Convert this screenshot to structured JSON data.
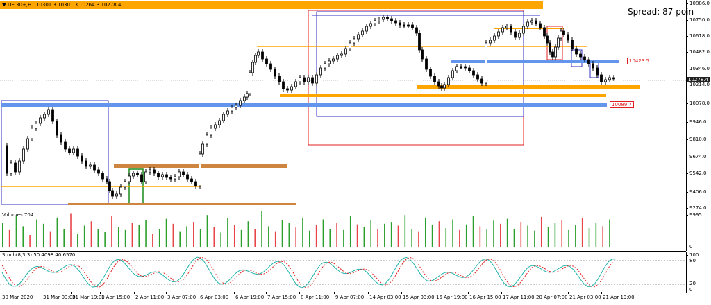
{
  "chart_header": {
    "symbol_info": "DE.30+,H1  10301.3 10301.3 10264.3 10278.4",
    "spread_text": "Spread: 87 poin"
  },
  "price_axis": [
    "10886.0",
    "10750.0",
    "10618.0",
    "10482.0",
    "10346.0",
    "10214.0",
    "10078.0",
    "9946.0",
    "9810.0",
    "9674.0",
    "9542.0",
    "9406.0",
    "9274.0"
  ],
  "price_tags": {
    "upper": "10423.5",
    "lower": "10089.7",
    "current": "10278.4"
  },
  "volume_pane": {
    "label": "Volumes 704",
    "axis_top": "9995",
    "axis_bottom": "0"
  },
  "stoch_pane": {
    "label": "Stoch(8,3,3) 50.4098 40.6570",
    "axis": [
      "100",
      "80",
      "20",
      "0"
    ]
  },
  "time_axis": [
    "30 Mar 2020",
    "31 Mar 03:00",
    "31 Mar 19:00",
    "1 Apr 15:00",
    "2 Apr 11:00",
    "3 Apr 07:00",
    "6 Apr 03:00",
    "6 Apr 19:00",
    "7 Apr 15:00",
    "8 Apr 11:00",
    "9 Apr 07:00",
    "14 Apr 03:00",
    "15 Apr 03:00",
    "15 Apr 19:00",
    "16 Apr 15:00",
    "17 Apr 11:00",
    "20 Apr 07:00",
    "21 Apr 03:00",
    "21 Apr 19:00"
  ],
  "colors": {
    "orange": "#ffa500",
    "blue_zone": "#6495ed",
    "brown": "#cd853f",
    "up_volume": "#2ca02c",
    "down_volume": "#e8454a",
    "stoch_main": "#20b2aa",
    "stoch_signal": "#e02020"
  }
}
